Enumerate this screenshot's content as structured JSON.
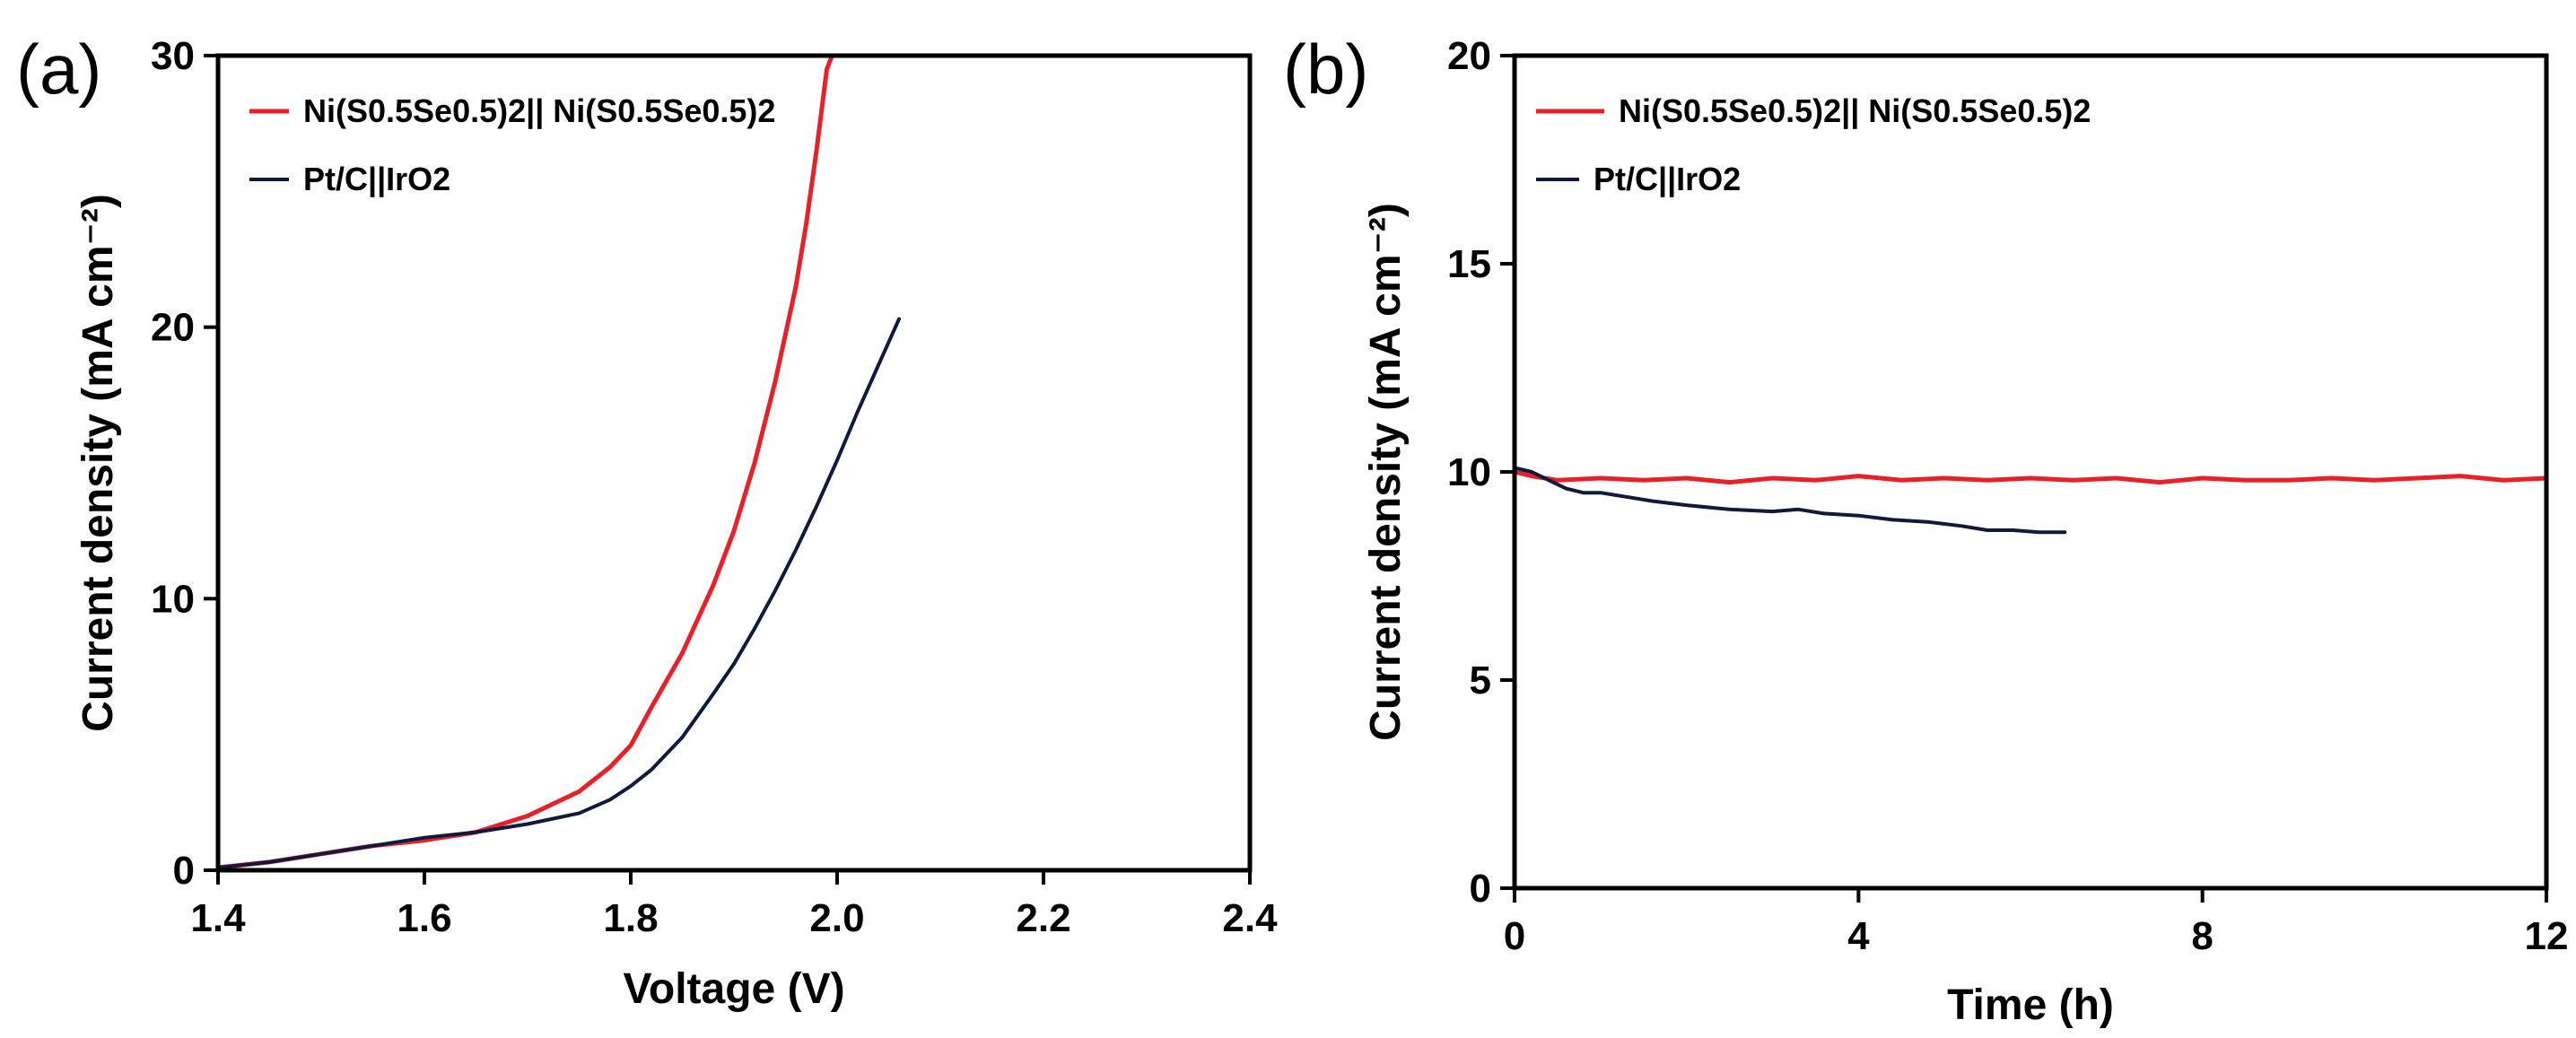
{
  "colors": {
    "red": "#e8202a",
    "navy": "#0f1a3c"
  },
  "chart_data": [
    {
      "panel": "(a)",
      "type": "line",
      "xlabel": "Voltage (V)",
      "ylabel": "Current density (mA cm⁻²)",
      "xlim": [
        1.4,
        2.4
      ],
      "ylim": [
        0,
        30
      ],
      "xticks": [
        1.4,
        1.6,
        1.8,
        2.0,
        2.2,
        2.4
      ],
      "xtick_labels": [
        "1.4",
        "1.6",
        "1.8",
        "2.0",
        "2.2",
        "2.4"
      ],
      "yticks": [
        0,
        10,
        20,
        30
      ],
      "ytick_labels": [
        "0",
        "10",
        "20",
        "30"
      ],
      "legend": [
        "Ni(S0.5Se0.5)2|| Ni(S0.5Se0.5)2",
        "Pt/C||IrO2"
      ],
      "series": [
        {
          "name": "Ni(S0.5Se0.5)2|| Ni(S0.5Se0.5)2",
          "color": "#e8202a",
          "x": [
            1.4,
            1.45,
            1.5,
            1.55,
            1.6,
            1.65,
            1.7,
            1.75,
            1.78,
            1.8,
            1.82,
            1.85,
            1.88,
            1.9,
            1.92,
            1.94,
            1.96,
            1.97,
            1.98,
            1.99,
            1.995
          ],
          "y": [
            0.1,
            0.3,
            0.6,
            0.9,
            1.1,
            1.4,
            2.0,
            2.9,
            3.8,
            4.6,
            6.0,
            8.0,
            10.5,
            12.5,
            15.0,
            18.0,
            21.5,
            23.8,
            26.5,
            29.5,
            30.0
          ]
        },
        {
          "name": "Pt/C||IrO2",
          "color": "#0f1a3c",
          "x": [
            1.4,
            1.45,
            1.5,
            1.55,
            1.6,
            1.65,
            1.7,
            1.75,
            1.78,
            1.8,
            1.82,
            1.85,
            1.88,
            1.9,
            1.92,
            1.94,
            1.96,
            1.98,
            2.0,
            2.02,
            2.04,
            2.06
          ],
          "y": [
            0.1,
            0.3,
            0.6,
            0.9,
            1.2,
            1.4,
            1.7,
            2.1,
            2.6,
            3.1,
            3.7,
            4.9,
            6.5,
            7.6,
            8.9,
            10.3,
            11.8,
            13.4,
            15.1,
            16.9,
            18.6,
            20.3
          ]
        }
      ]
    },
    {
      "panel": "(b)",
      "type": "line",
      "xlabel": "Time (h)",
      "ylabel": "Current density (mA cm⁻²)",
      "xlim": [
        0,
        12
      ],
      "ylim": [
        0,
        20
      ],
      "xticks": [
        0,
        4,
        8,
        12
      ],
      "xtick_labels": [
        "0",
        "4",
        "8",
        "12"
      ],
      "yticks": [
        0,
        5,
        10,
        15,
        20
      ],
      "ytick_labels": [
        "0",
        "5",
        "10",
        "15",
        "20"
      ],
      "legend": [
        "Ni(S0.5Se0.5)2|| Ni(S0.5Se0.5)2",
        "Pt/C||IrO2"
      ],
      "series": [
        {
          "name": "Ni(S0.5Se0.5)2|| Ni(S0.5Se0.5)2",
          "color": "#e8202a",
          "x": [
            0.0,
            0.2,
            0.5,
            1.0,
            1.5,
            2.0,
            2.5,
            3.0,
            3.5,
            4.0,
            4.5,
            5.0,
            5.5,
            6.0,
            6.5,
            7.0,
            7.5,
            8.0,
            8.5,
            9.0,
            9.5,
            10.0,
            10.5,
            11.0,
            11.5,
            12.0
          ],
          "y": [
            10.0,
            9.9,
            9.8,
            9.85,
            9.8,
            9.85,
            9.75,
            9.85,
            9.8,
            9.9,
            9.8,
            9.85,
            9.8,
            9.85,
            9.8,
            9.85,
            9.75,
            9.85,
            9.8,
            9.8,
            9.85,
            9.8,
            9.85,
            9.9,
            9.8,
            9.85
          ]
        },
        {
          "name": "Pt/C||IrO2",
          "color": "#0f1a3c",
          "x": [
            0.0,
            0.2,
            0.4,
            0.6,
            0.8,
            1.0,
            1.3,
            1.6,
            2.0,
            2.5,
            3.0,
            3.3,
            3.6,
            4.0,
            4.4,
            4.8,
            5.2,
            5.5,
            5.8,
            6.1,
            6.4
          ],
          "y": [
            10.1,
            10.0,
            9.8,
            9.6,
            9.5,
            9.5,
            9.4,
            9.3,
            9.2,
            9.1,
            9.05,
            9.1,
            9.0,
            8.95,
            8.85,
            8.8,
            8.7,
            8.6,
            8.6,
            8.55,
            8.55
          ]
        }
      ]
    }
  ]
}
